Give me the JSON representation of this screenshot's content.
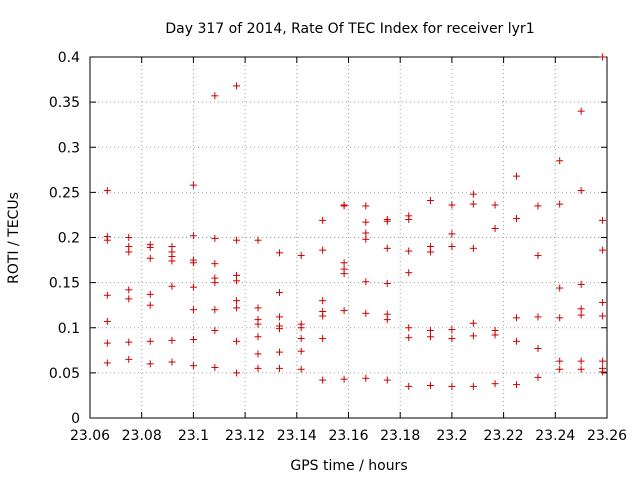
{
  "chart_data": {
    "type": "scatter",
    "title": "Day 317 of 2014, Rate Of TEC Index for receiver lyr1",
    "xlabel": "GPS time / hours",
    "ylabel": "ROTI / TECUs",
    "xlim": [
      23.06,
      23.26
    ],
    "ylim": [
      0,
      0.4
    ],
    "xticks": [
      23.06,
      23.08,
      23.1,
      23.12,
      23.14,
      23.16,
      23.18,
      23.2,
      23.22,
      23.24,
      23.26
    ],
    "xtick_labels": [
      "23.06",
      "23.08",
      "23.1",
      "23.12",
      "23.14",
      "23.16",
      "23.18",
      "23.2",
      "23.22",
      "23.24",
      "23.26"
    ],
    "yticks": [
      0,
      0.05,
      0.1,
      0.15,
      0.2,
      0.25,
      0.3,
      0.35,
      0.4
    ],
    "ytick_labels": [
      "0",
      "0.05",
      "0.1",
      "0.15",
      "0.2",
      "0.25",
      "0.3",
      "0.35",
      "0.4"
    ],
    "grid": true,
    "marker": "+",
    "color": "#cc0000",
    "series": [
      {
        "name": "lyr1",
        "points": [
          [
            23.0667,
            0.252
          ],
          [
            23.0667,
            0.201
          ],
          [
            23.0667,
            0.197
          ],
          [
            23.0667,
            0.136
          ],
          [
            23.0667,
            0.107
          ],
          [
            23.0667,
            0.083
          ],
          [
            23.0667,
            0.061
          ],
          [
            23.075,
            0.2
          ],
          [
            23.075,
            0.19
          ],
          [
            23.075,
            0.184
          ],
          [
            23.075,
            0.142
          ],
          [
            23.075,
            0.132
          ],
          [
            23.075,
            0.084
          ],
          [
            23.075,
            0.065
          ],
          [
            23.0833,
            0.192
          ],
          [
            23.0833,
            0.189
          ],
          [
            23.0833,
            0.177
          ],
          [
            23.0833,
            0.137
          ],
          [
            23.0833,
            0.125
          ],
          [
            23.0833,
            0.085
          ],
          [
            23.0833,
            0.06
          ],
          [
            23.0917,
            0.19
          ],
          [
            23.0917,
            0.184
          ],
          [
            23.0917,
            0.179
          ],
          [
            23.0917,
            0.174
          ],
          [
            23.0917,
            0.146
          ],
          [
            23.0917,
            0.086
          ],
          [
            23.0917,
            0.062
          ],
          [
            23.1,
            0.258
          ],
          [
            23.1,
            0.202
          ],
          [
            23.1,
            0.175
          ],
          [
            23.1,
            0.172
          ],
          [
            23.1,
            0.145
          ],
          [
            23.1,
            0.12
          ],
          [
            23.1,
            0.087
          ],
          [
            23.1,
            0.058
          ],
          [
            23.1083,
            0.357
          ],
          [
            23.1083,
            0.199
          ],
          [
            23.1083,
            0.171
          ],
          [
            23.1083,
            0.155
          ],
          [
            23.1083,
            0.15
          ],
          [
            23.1083,
            0.12
          ],
          [
            23.1083,
            0.097
          ],
          [
            23.1083,
            0.056
          ],
          [
            23.1167,
            0.368
          ],
          [
            23.1167,
            0.197
          ],
          [
            23.1167,
            0.158
          ],
          [
            23.1167,
            0.152
          ],
          [
            23.1167,
            0.13
          ],
          [
            23.1167,
            0.122
          ],
          [
            23.1167,
            0.085
          ],
          [
            23.1167,
            0.05
          ],
          [
            23.125,
            0.197
          ],
          [
            23.125,
            0.122
          ],
          [
            23.125,
            0.109
          ],
          [
            23.125,
            0.104
          ],
          [
            23.125,
            0.09
          ],
          [
            23.125,
            0.071
          ],
          [
            23.125,
            0.055
          ],
          [
            23.1333,
            0.183
          ],
          [
            23.1333,
            0.139
          ],
          [
            23.1333,
            0.112
          ],
          [
            23.1333,
            0.102
          ],
          [
            23.1333,
            0.099
          ],
          [
            23.1333,
            0.073
          ],
          [
            23.1333,
            0.055
          ],
          [
            23.1417,
            0.18
          ],
          [
            23.1417,
            0.104
          ],
          [
            23.1417,
            0.1
          ],
          [
            23.1417,
            0.088
          ],
          [
            23.1417,
            0.074
          ],
          [
            23.1417,
            0.054
          ],
          [
            23.15,
            0.219
          ],
          [
            23.15,
            0.186
          ],
          [
            23.15,
            0.13
          ],
          [
            23.15,
            0.118
          ],
          [
            23.15,
            0.113
          ],
          [
            23.15,
            0.088
          ],
          [
            23.15,
            0.042
          ],
          [
            23.1583,
            0.236
          ],
          [
            23.1583,
            0.235
          ],
          [
            23.1583,
            0.172
          ],
          [
            23.1583,
            0.165
          ],
          [
            23.1583,
            0.16
          ],
          [
            23.1583,
            0.119
          ],
          [
            23.1583,
            0.043
          ],
          [
            23.1667,
            0.235
          ],
          [
            23.1667,
            0.217
          ],
          [
            23.1667,
            0.205
          ],
          [
            23.1667,
            0.198
          ],
          [
            23.1667,
            0.151
          ],
          [
            23.1667,
            0.116
          ],
          [
            23.1667,
            0.044
          ],
          [
            23.175,
            0.22
          ],
          [
            23.175,
            0.218
          ],
          [
            23.175,
            0.188
          ],
          [
            23.175,
            0.149
          ],
          [
            23.175,
            0.115
          ],
          [
            23.175,
            0.109
          ],
          [
            23.175,
            0.042
          ],
          [
            23.1833,
            0.224
          ],
          [
            23.1833,
            0.22
          ],
          [
            23.1833,
            0.185
          ],
          [
            23.1833,
            0.161
          ],
          [
            23.1833,
            0.1
          ],
          [
            23.1833,
            0.089
          ],
          [
            23.1833,
            0.035
          ],
          [
            23.1917,
            0.241
          ],
          [
            23.1917,
            0.19
          ],
          [
            23.1917,
            0.184
          ],
          [
            23.1917,
            0.097
          ],
          [
            23.1917,
            0.09
          ],
          [
            23.1917,
            0.036
          ],
          [
            23.2,
            0.236
          ],
          [
            23.2,
            0.204
          ],
          [
            23.2,
            0.19
          ],
          [
            23.2,
            0.098
          ],
          [
            23.2,
            0.088
          ],
          [
            23.2,
            0.035
          ],
          [
            23.2083,
            0.248
          ],
          [
            23.2083,
            0.237
          ],
          [
            23.2083,
            0.188
          ],
          [
            23.2083,
            0.105
          ],
          [
            23.2083,
            0.091
          ],
          [
            23.2083,
            0.035
          ],
          [
            23.2167,
            0.236
          ],
          [
            23.2167,
            0.21
          ],
          [
            23.2167,
            0.097
          ],
          [
            23.2167,
            0.092
          ],
          [
            23.2167,
            0.038
          ],
          [
            23.225,
            0.268
          ],
          [
            23.225,
            0.221
          ],
          [
            23.225,
            0.111
          ],
          [
            23.225,
            0.085
          ],
          [
            23.225,
            0.037
          ],
          [
            23.2333,
            0.235
          ],
          [
            23.2333,
            0.18
          ],
          [
            23.2333,
            0.112
          ],
          [
            23.2333,
            0.077
          ],
          [
            23.2333,
            0.045
          ],
          [
            23.2417,
            0.285
          ],
          [
            23.2417,
            0.237
          ],
          [
            23.2417,
            0.144
          ],
          [
            23.2417,
            0.111
          ],
          [
            23.2417,
            0.063
          ],
          [
            23.2417,
            0.054
          ],
          [
            23.25,
            0.34
          ],
          [
            23.25,
            0.252
          ],
          [
            23.25,
            0.148
          ],
          [
            23.25,
            0.121
          ],
          [
            23.25,
            0.114
          ],
          [
            23.25,
            0.063
          ],
          [
            23.25,
            0.054
          ],
          [
            23.2583,
            0.4
          ],
          [
            23.2583,
            0.219
          ],
          [
            23.2583,
            0.186
          ],
          [
            23.2583,
            0.128
          ],
          [
            23.2583,
            0.113
          ],
          [
            23.2583,
            0.063
          ],
          [
            23.2583,
            0.055
          ],
          [
            23.2583,
            0.051
          ]
        ]
      }
    ]
  }
}
